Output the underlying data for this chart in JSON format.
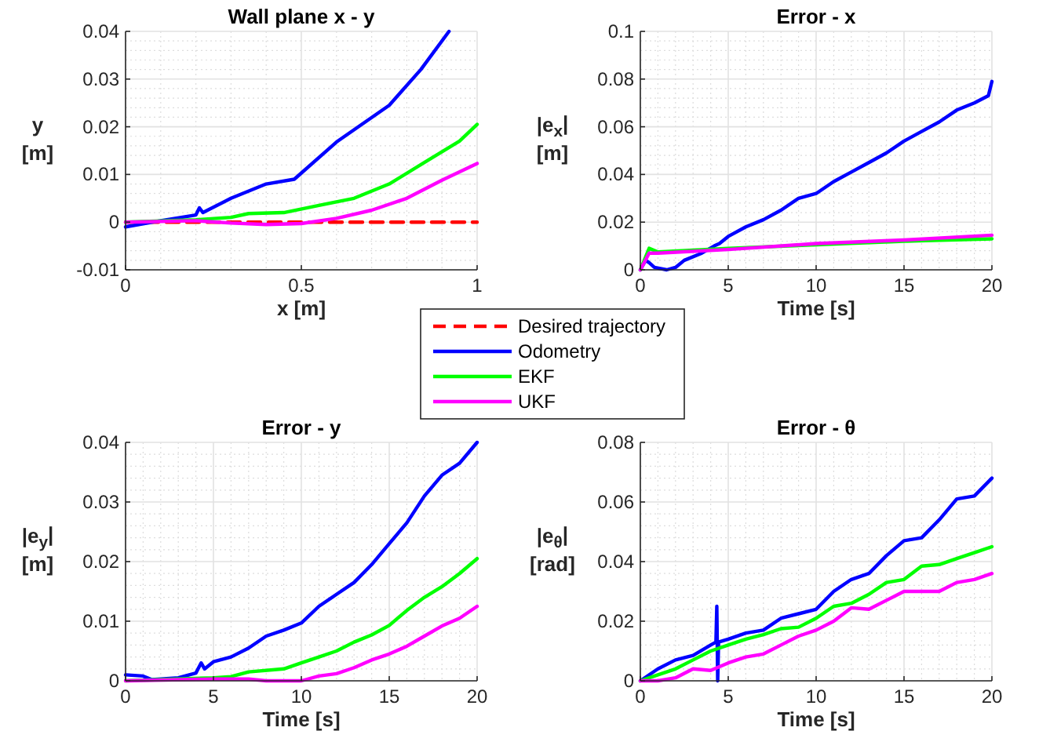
{
  "chart_data": [
    {
      "type": "line",
      "title": "Wall plane x - y",
      "xlabel": "x [m]",
      "ylabel": "y\n[m]",
      "xlim": [
        0,
        1
      ],
      "xticks": [
        0,
        0.5,
        1
      ],
      "ylim": [
        -0.01,
        0.04
      ],
      "yticks": [
        -0.01,
        0,
        0.01,
        0.02,
        0.03,
        0.04
      ],
      "grid": true,
      "legend": "bottom right",
      "series": [
        {
          "name": "Desired trajectory",
          "color": "#ff0000",
          "line_style": "dashed",
          "x": [
            0,
            1
          ],
          "values": [
            0,
            0
          ]
        },
        {
          "name": "Odometry",
          "color": "#0000ff",
          "x": [
            0,
            0.1,
            0.2,
            0.21,
            0.22,
            0.3,
            0.4,
            0.48,
            0.6,
            0.75,
            0.84,
            0.92
          ],
          "values": [
            -0.001,
            0.0003,
            0.0015,
            0.003,
            0.002,
            0.005,
            0.008,
            0.009,
            0.0168,
            0.0245,
            0.032,
            0.04
          ]
        },
        {
          "name": "EKF",
          "color": "#00ff00",
          "x": [
            0,
            0.2,
            0.3,
            0.35,
            0.45,
            0.55,
            0.65,
            0.75,
            0.85,
            0.95,
            1
          ],
          "values": [
            0,
            0.0005,
            0.001,
            0.0018,
            0.002,
            0.0035,
            0.005,
            0.008,
            0.0125,
            0.017,
            0.0205
          ]
        },
        {
          "name": "UKF",
          "color": "#ff00ff",
          "x": [
            0,
            0.2,
            0.3,
            0.4,
            0.5,
            0.6,
            0.7,
            0.8,
            0.9,
            1
          ],
          "values": [
            0,
            0.0003,
            -0.0002,
            -0.0005,
            -0.0003,
            0.0008,
            0.0025,
            0.005,
            0.0088,
            0.0123
          ]
        }
      ]
    },
    {
      "type": "line",
      "title": "Error - x",
      "xlabel": "Time [s]",
      "ylabel": "|e$_{x}$|\n[m]",
      "xlim": [
        0,
        20
      ],
      "xticks": [
        0,
        5,
        10,
        15,
        20
      ],
      "ylim": [
        0,
        0.1
      ],
      "yticks": [
        0,
        0.02,
        0.04,
        0.06,
        0.08,
        0.1
      ],
      "grid": true,
      "series": [
        {
          "color": "#0000ff",
          "x": [
            0,
            0.3,
            0.5,
            0.8,
            1.5,
            2,
            2.5,
            3.5,
            4.2,
            4.5,
            5,
            6,
            7,
            8,
            9,
            10,
            11,
            12,
            13,
            14,
            15,
            16,
            17,
            18,
            19,
            19.8,
            20
          ],
          "values": [
            0,
            0.004,
            0.003,
            0.001,
            0,
            0.001,
            0.004,
            0.007,
            0.01,
            0.011,
            0.014,
            0.018,
            0.021,
            0.025,
            0.03,
            0.032,
            0.037,
            0.041,
            0.045,
            0.049,
            0.054,
            0.058,
            0.062,
            0.067,
            0.07,
            0.073,
            0.079
          ]
        },
        {
          "color": "#00ff00",
          "x": [
            0,
            0.5,
            1,
            5,
            10,
            15,
            20
          ],
          "values": [
            0,
            0.009,
            0.0075,
            0.009,
            0.0105,
            0.012,
            0.013
          ]
        },
        {
          "color": "#ff00ff",
          "x": [
            0,
            0.5,
            1,
            5,
            10,
            15,
            20
          ],
          "values": [
            0,
            0.007,
            0.007,
            0.0085,
            0.011,
            0.0125,
            0.0145
          ]
        }
      ]
    },
    {
      "type": "line",
      "title": "Error - y",
      "xlabel": "Time [s]",
      "ylabel": "|e$_{y}$|\n[m]",
      "xlim": [
        0,
        20
      ],
      "xticks": [
        0,
        5,
        10,
        15,
        20
      ],
      "ylim": [
        0,
        0.04
      ],
      "yticks": [
        0,
        0.01,
        0.02,
        0.03,
        0.04
      ],
      "grid": true,
      "series": [
        {
          "color": "#0000ff",
          "x": [
            0,
            1,
            1.5,
            3,
            4,
            4.3,
            4.5,
            5,
            6,
            7,
            8,
            9,
            10,
            11,
            12,
            13,
            14,
            15,
            16,
            17,
            18,
            19,
            20
          ],
          "values": [
            0.001,
            0.0008,
            0.0002,
            0.0005,
            0.0013,
            0.003,
            0.002,
            0.0032,
            0.004,
            0.0055,
            0.0075,
            0.0085,
            0.0097,
            0.0125,
            0.0145,
            0.0165,
            0.0195,
            0.023,
            0.0265,
            0.031,
            0.0345,
            0.0365,
            0.04
          ]
        },
        {
          "color": "#00ff00",
          "x": [
            0,
            5,
            6,
            7,
            9,
            10,
            11,
            12,
            13,
            14,
            15,
            16,
            17,
            18,
            19,
            20
          ],
          "values": [
            0,
            0.0005,
            0.0007,
            0.0015,
            0.002,
            0.003,
            0.004,
            0.005,
            0.0065,
            0.0077,
            0.0093,
            0.0118,
            0.014,
            0.0158,
            0.018,
            0.0205
          ]
        },
        {
          "color": "#ff00ff",
          "x": [
            0,
            5,
            7,
            8,
            10,
            11,
            12,
            13,
            14,
            15,
            16,
            17,
            18,
            19,
            20
          ],
          "values": [
            0,
            0.0003,
            0.0003,
            0,
            0,
            0.0008,
            0.0012,
            0.0022,
            0.0035,
            0.0045,
            0.0058,
            0.0075,
            0.0092,
            0.0105,
            0.0125
          ]
        }
      ]
    },
    {
      "type": "line",
      "title": "Error - θ",
      "xlabel": "Time [s]",
      "ylabel": "|e$_{θ}$|\n[rad]",
      "xlim": [
        0,
        20
      ],
      "xticks": [
        0,
        5,
        10,
        15,
        20
      ],
      "ylim": [
        0,
        0.08
      ],
      "yticks": [
        0,
        0.02,
        0.04,
        0.06,
        0.08
      ],
      "grid": true,
      "series": [
        {
          "color": "#0000ff",
          "x": [
            0,
            1,
            2,
            3,
            4,
            4.3,
            4.35,
            4.4,
            4.45,
            5,
            6,
            7,
            8,
            9,
            10,
            11,
            12,
            13,
            14,
            15,
            16,
            17,
            18,
            19,
            20
          ],
          "values": [
            0,
            0.004,
            0.007,
            0.0085,
            0.012,
            0.013,
            0.025,
            0,
            0.013,
            0.014,
            0.016,
            0.017,
            0.021,
            0.0225,
            0.024,
            0.03,
            0.034,
            0.036,
            0.042,
            0.047,
            0.048,
            0.054,
            0.061,
            0.062,
            0.068
          ]
        },
        {
          "color": "#00ff00",
          "x": [
            0,
            1,
            2,
            3,
            4,
            5,
            6,
            7,
            8,
            9,
            10,
            11,
            12,
            13,
            14,
            15,
            16,
            17,
            18,
            19,
            20
          ],
          "values": [
            0,
            0.002,
            0.004,
            0.007,
            0.01,
            0.012,
            0.014,
            0.0155,
            0.0175,
            0.018,
            0.021,
            0.025,
            0.026,
            0.029,
            0.033,
            0.034,
            0.0385,
            0.039,
            0.041,
            0.043,
            0.045
          ]
        },
        {
          "color": "#ff00ff",
          "x": [
            0,
            1,
            2,
            3,
            4,
            5,
            6,
            7,
            8,
            9,
            10,
            11,
            12,
            13,
            14,
            15,
            16,
            17,
            18,
            19,
            20
          ],
          "values": [
            0,
            0,
            0.001,
            0.004,
            0.0035,
            0.006,
            0.008,
            0.009,
            0.012,
            0.015,
            0.017,
            0.02,
            0.0245,
            0.024,
            0.027,
            0.03,
            0.03,
            0.03,
            0.033,
            0.034,
            0.036
          ]
        }
      ]
    }
  ]
}
